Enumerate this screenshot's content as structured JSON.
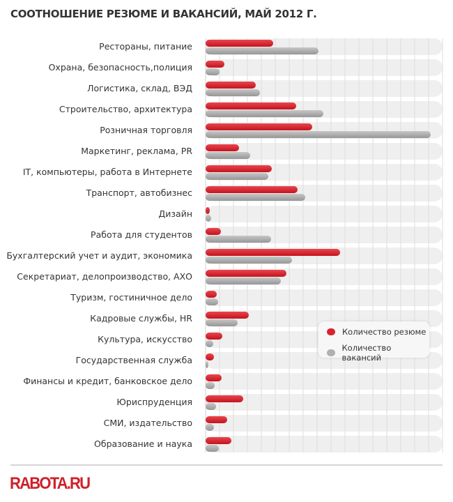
{
  "chart_data": {
    "type": "bar",
    "orientation": "horizontal",
    "title": "СООТНОШЕНИЕ РЕЗЮМЕ И ВАКАНСИЙ, МАЙ 2012 Г.",
    "categories": [
      "Рестораны, питание",
      "Охрана, безопасность,полиция",
      "Логистика, склад, ВЭД",
      "Строительство, архитектура",
      "Розничная торговля",
      "Маркетинг, реклама, PR",
      "IT, компьютеры, работа в Интернете",
      "Транспорт, автобизнес",
      "Дизайн",
      "Работа для студентов",
      "Бухгалтерский учет и аудит, экономика",
      "Секретариат, делопроизводство, АХО",
      "Туризм, гостиничное дело",
      "Кадровые службы, HR",
      "Культура, искусство",
      "Государственная служба",
      "Финансы и кредит, банковское дело",
      "Юриспруденция",
      "СМИ, издательство",
      "Образование и наука"
    ],
    "series": [
      {
        "name": "Количество резюме",
        "color": "#d9222c",
        "values": [
          4.85,
          1.35,
          3.6,
          6.5,
          7.65,
          2.4,
          4.75,
          6.6,
          0.3,
          1.1,
          9.65,
          5.8,
          0.8,
          3.1,
          1.2,
          0.6,
          1.15,
          2.7,
          1.55,
          1.85
        ]
      },
      {
        "name": "Количество вакансий",
        "color": "#a9a9a9",
        "values": [
          8.1,
          1.0,
          3.9,
          8.45,
          16.15,
          3.2,
          4.5,
          7.15,
          0.4,
          4.7,
          6.2,
          5.4,
          0.9,
          2.3,
          0.55,
          0.15,
          0.65,
          0.75,
          0.6,
          0.95
        ]
      }
    ],
    "xlim": [
      0,
      17
    ],
    "grid": true,
    "axis_tick_labels": false,
    "legend_position": "bottom-right"
  },
  "logo": "RABOTA.RU"
}
